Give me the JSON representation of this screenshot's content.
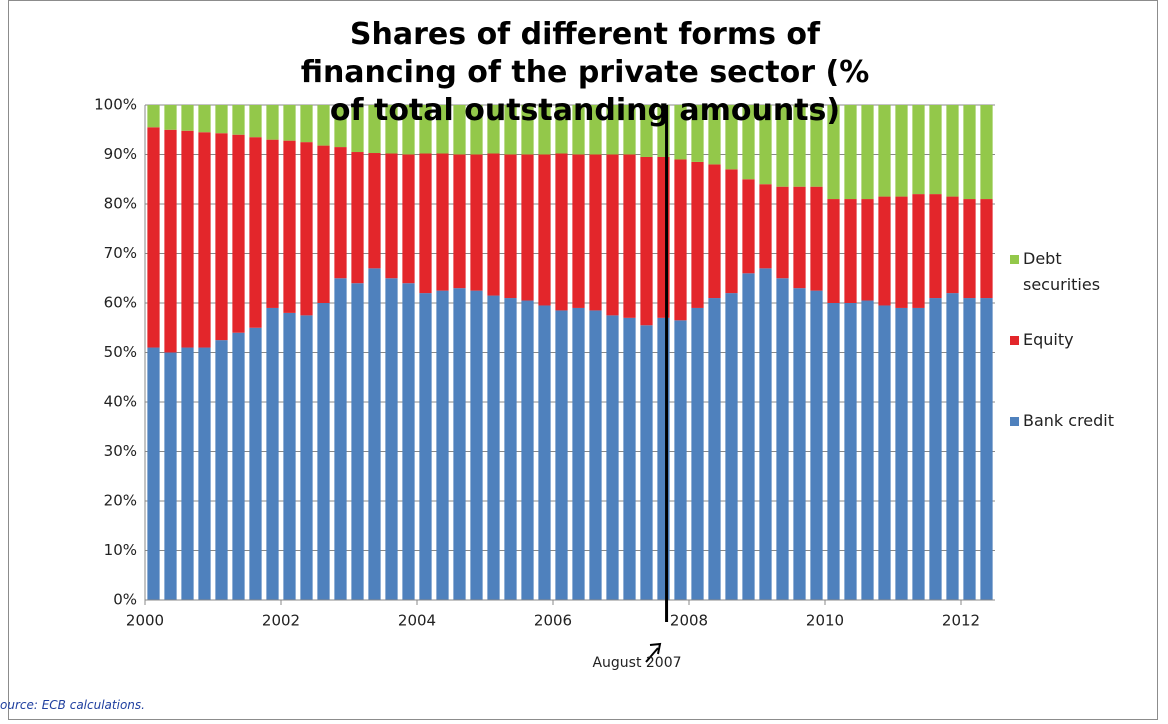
{
  "chart_data": {
    "type": "stacked-bar",
    "title": "Shares of different forms of financing of the private sector (% of total outstanding amounts)",
    "source": "ource: ECB calculations.",
    "x": [
      2000,
      2000.25,
      2000.5,
      2000.75,
      2001,
      2001.25,
      2001.5,
      2001.75,
      2002,
      2002.25,
      2002.5,
      2002.75,
      2003,
      2003.25,
      2003.5,
      2003.75,
      2004,
      2004.25,
      2004.5,
      2004.75,
      2005,
      2005.25,
      2005.5,
      2005.75,
      2006,
      2006.25,
      2006.5,
      2006.75,
      2007,
      2007.25,
      2007.5,
      2007.75,
      2008,
      2008.25,
      2008.5,
      2008.75,
      2009,
      2009.25,
      2009.5,
      2009.75,
      2010,
      2010.25,
      2010.5,
      2010.75,
      2011,
      2011.25,
      2011.5,
      2011.75,
      2012,
      2012.25
    ],
    "series": [
      {
        "name": "Bank credit",
        "color": "#4f81bd",
        "values": [
          51,
          50,
          51,
          51,
          52.5,
          54,
          55,
          59,
          58,
          57.5,
          60,
          65,
          64,
          67,
          65,
          64,
          62,
          62.5,
          63,
          62.5,
          61.5,
          61,
          60.5,
          59.5,
          58.5,
          59,
          58.5,
          57.5,
          57,
          55.5,
          57,
          56.5,
          59,
          61,
          62,
          66,
          67,
          65,
          63,
          62.5,
          60,
          60,
          60.5,
          59.5,
          59,
          59,
          61,
          62,
          61,
          61
        ]
      },
      {
        "name": "Equity",
        "color": "#e3262b",
        "values": [
          44.5,
          45,
          43.8,
          43.5,
          41.8,
          40,
          38.5,
          34,
          34.8,
          35,
          31.8,
          26.5,
          26.5,
          23.3,
          25.2,
          26,
          28.2,
          27.7,
          27,
          27.5,
          28.7,
          29,
          29.5,
          30.5,
          31.7,
          31,
          31.5,
          32.5,
          33,
          34,
          32.5,
          32.5,
          29.5,
          27,
          25,
          19,
          17,
          18.5,
          20.5,
          21,
          21,
          21,
          20.5,
          22,
          22.5,
          23,
          21,
          19.5,
          20,
          20
        ]
      },
      {
        "name": "Debt securities",
        "color": "#93c84a",
        "values": [
          4.5,
          5,
          5.2,
          5.5,
          5.7,
          6,
          6.5,
          7,
          7.2,
          7.5,
          8.2,
          8.5,
          9.5,
          9.7,
          9.8,
          10,
          9.8,
          9.8,
          10,
          10,
          9.8,
          10,
          10,
          10,
          9.8,
          10,
          10,
          10,
          10,
          10.5,
          10.5,
          11,
          11.5,
          12,
          13,
          15,
          16,
          16.5,
          16.5,
          16.5,
          19,
          19,
          19,
          18.5,
          18.5,
          18,
          18,
          18.5,
          19,
          19
        ]
      }
    ],
    "xlim": [
      2000,
      2012.5
    ],
    "xticks": [
      2000,
      2002,
      2004,
      2006,
      2008,
      2010,
      2012
    ],
    "ylim": [
      0,
      100
    ],
    "yticks": [
      {
        "value": 0,
        "label": "0%"
      },
      {
        "value": 10,
        "label": "10%"
      },
      {
        "value": 20,
        "label": "20%"
      },
      {
        "value": 30,
        "label": "30%"
      },
      {
        "value": 40,
        "label": "40%"
      },
      {
        "value": 50,
        "label": "50%"
      },
      {
        "value": 60,
        "label": "60%"
      },
      {
        "value": 70,
        "label": "70%"
      },
      {
        "value": 80,
        "label": "80%"
      },
      {
        "value": 90,
        "label": "90%"
      },
      {
        "value": 100,
        "label": "100%"
      }
    ],
    "grid": true,
    "annotation": {
      "text": "August 2007",
      "x": 2007.67
    }
  }
}
